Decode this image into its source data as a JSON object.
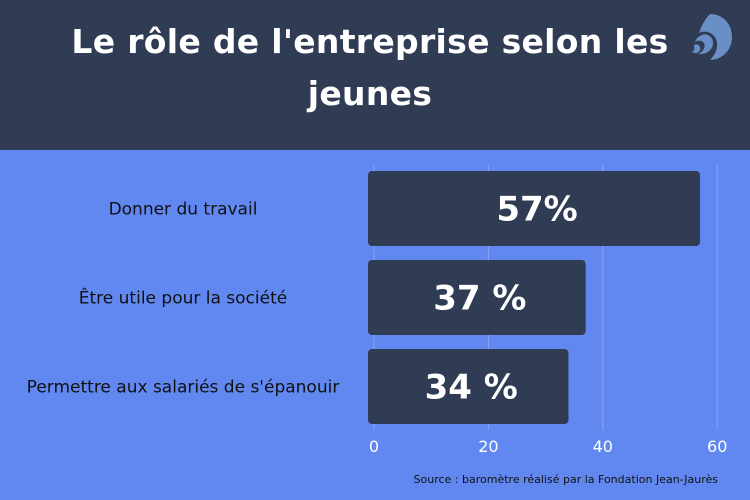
{
  "title": "Le rôle de l'entreprise selon les jeunes",
  "source": "Source : baromètre réalisé par la Fondation Jean-Jaurès",
  "colors": {
    "header_bg": "#303b54",
    "body_bg": "#6088f0",
    "bar": "#303b54",
    "gridline": "#8aa6f4",
    "logo": "#6a8fc6"
  },
  "logo_icon": "spiral-wave-logo",
  "chart_data": {
    "type": "bar",
    "orientation": "horizontal",
    "categories": [
      "Donner du travail",
      "Être utile pour la société",
      "Permettre aux salariés de s'épanouir"
    ],
    "values": [
      57,
      37,
      34
    ],
    "value_labels": [
      "57%",
      "37 %",
      "34 %"
    ],
    "xlim": [
      0,
      60
    ],
    "xticks": [
      0,
      20,
      40,
      60
    ],
    "grid": true
  }
}
